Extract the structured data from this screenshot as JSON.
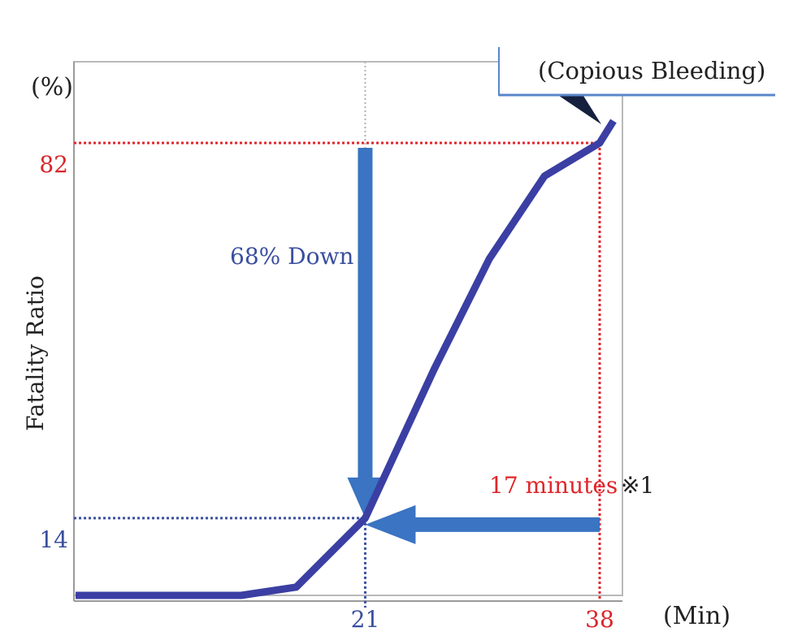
{
  "chart_data": {
    "type": "line",
    "title": "",
    "xlabel": "(Min)",
    "ylabel": "Fatality Ratio",
    "y_unit_label": "(%)",
    "grid": false,
    "series": [
      {
        "x": [
          0,
          12,
          16,
          21,
          26,
          30,
          34,
          38,
          39
        ],
        "y": [
          0,
          0,
          1.5,
          14,
          41,
          61,
          76,
          82,
          86
        ]
      }
    ],
    "xticks": [
      {
        "value": 21,
        "label": "21",
        "color": "#3a4fa0"
      },
      {
        "value": 38,
        "label": "38",
        "color": "#d9262c"
      }
    ],
    "yticks": [
      {
        "value": 14,
        "label": "14",
        "color": "#3a4fa0"
      },
      {
        "value": 82,
        "label": "82",
        "color": "#d9262c"
      }
    ],
    "annotations": {
      "callout": "(Copious Bleeding)",
      "down_label": "68% Down",
      "minutes_label": "17 minutes",
      "minutes_note": "※1"
    }
  },
  "colors": {
    "line": "#3b3fa3",
    "arrow": "#3a74c2",
    "red": "#e0262c",
    "blue_text": "#3a4fa0",
    "frame": "#b9b9b9",
    "axis": "#9a9a9a",
    "callout_border": "#5a86c8"
  }
}
